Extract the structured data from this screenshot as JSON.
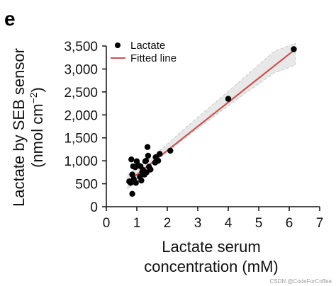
{
  "panel_label": "e",
  "watermark": "CSDN @CodeForCoffee",
  "chart_data": {
    "type": "scatter",
    "title": "",
    "xlabel_line1": "Lactate serum",
    "xlabel_line2": "concentration (mM)",
    "ylabel_line1": "Lactate by SEB sensor",
    "ylabel_line2_pre": "(nmol cm",
    "ylabel_line2_sup": "−2",
    "ylabel_line2_post": ")",
    "xlim": [
      0,
      7
    ],
    "ylim": [
      0,
      3500
    ],
    "xticks": [
      0,
      1,
      2,
      3,
      4,
      5,
      6,
      7
    ],
    "yticks": [
      0,
      500,
      1000,
      1500,
      2000,
      2500,
      3000,
      3500
    ],
    "ytick_labels": [
      "0",
      "500",
      "1,000",
      "1,500",
      "2,000",
      "2,500",
      "3,000",
      "3,500"
    ],
    "legend_position": "top-left",
    "series": [
      {
        "name": "Lactate",
        "kind": "scatter",
        "color": "#000000",
        "points": [
          [
            0.75,
            550
          ],
          [
            0.8,
            520
          ],
          [
            0.82,
            1030
          ],
          [
            0.85,
            280
          ],
          [
            0.85,
            700
          ],
          [
            0.88,
            880
          ],
          [
            0.9,
            600
          ],
          [
            0.95,
            860
          ],
          [
            0.97,
            520
          ],
          [
            1.0,
            990
          ],
          [
            1.05,
            900
          ],
          [
            1.1,
            650
          ],
          [
            1.12,
            880
          ],
          [
            1.15,
            570
          ],
          [
            1.18,
            760
          ],
          [
            1.2,
            800
          ],
          [
            1.25,
            700
          ],
          [
            1.28,
            990
          ],
          [
            1.3,
            1000
          ],
          [
            1.32,
            750
          ],
          [
            1.35,
            1300
          ],
          [
            1.37,
            1110
          ],
          [
            1.4,
            870
          ],
          [
            1.45,
            810
          ],
          [
            1.6,
            960
          ],
          [
            1.62,
            1080
          ],
          [
            1.65,
            1020
          ],
          [
            1.7,
            1000
          ],
          [
            1.75,
            1150
          ],
          [
            2.1,
            1220
          ],
          [
            4.0,
            2350
          ],
          [
            6.15,
            3430
          ]
        ]
      },
      {
        "name": "Fitted line",
        "kind": "line",
        "color": "#c85454",
        "x": [
          0.7,
          6.2
        ],
        "y": [
          540,
          3430
        ]
      }
    ],
    "confidence_band": {
      "color": "#e8e8e8",
      "x": [
        0.7,
        1.5,
        2.5,
        3.5,
        4.5,
        5.5,
        6.2
      ],
      "upper": [
        700,
        1070,
        1660,
        2230,
        2800,
        3380,
        3560
      ],
      "lower": [
        380,
        940,
        1450,
        1950,
        2440,
        2910,
        3080
      ]
    }
  }
}
